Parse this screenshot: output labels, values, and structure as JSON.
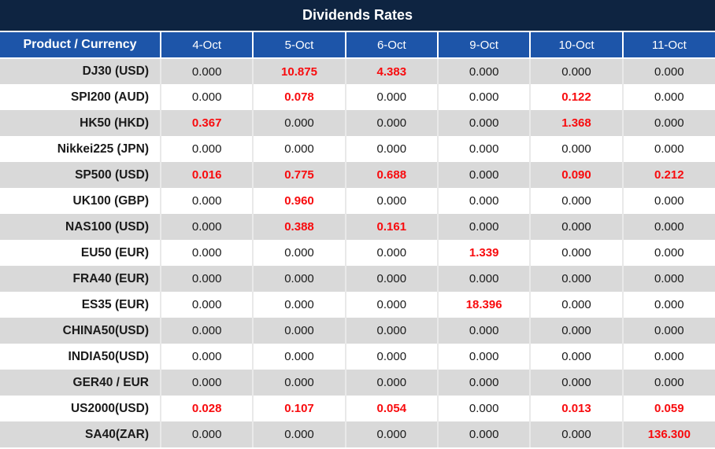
{
  "title": "Dividends Rates",
  "colors": {
    "title_bg": "#0E2441",
    "header_bg": "#1D55A9",
    "row_alt_bg": "#D9D9D9",
    "row_bg": "#FFFFFF",
    "text": "#1A1A1A",
    "header_text": "#FFFFFF",
    "red_value": "#F80B0E"
  },
  "chart_data": {
    "type": "table",
    "title": "Dividends Rates",
    "product_header": "Product / Currency",
    "date_headers": [
      "4-Oct",
      "5-Oct",
      "6-Oct",
      "9-Oct",
      "10-Oct",
      "11-Oct"
    ],
    "rows": [
      {
        "product": "DJ30 (USD)",
        "values": [
          "0.000",
          "10.875",
          "4.383",
          "0.000",
          "0.000",
          "0.000"
        ],
        "red": [
          false,
          true,
          true,
          false,
          false,
          false
        ]
      },
      {
        "product": "SPI200 (AUD)",
        "values": [
          "0.000",
          "0.078",
          "0.000",
          "0.000",
          "0.122",
          "0.000"
        ],
        "red": [
          false,
          true,
          false,
          false,
          true,
          false
        ]
      },
      {
        "product": "HK50 (HKD)",
        "values": [
          "0.367",
          "0.000",
          "0.000",
          "0.000",
          "1.368",
          "0.000"
        ],
        "red": [
          true,
          false,
          false,
          false,
          true,
          false
        ]
      },
      {
        "product": "Nikkei225 (JPN)",
        "values": [
          "0.000",
          "0.000",
          "0.000",
          "0.000",
          "0.000",
          "0.000"
        ],
        "red": [
          false,
          false,
          false,
          false,
          false,
          false
        ]
      },
      {
        "product": "SP500 (USD)",
        "values": [
          "0.016",
          "0.775",
          "0.688",
          "0.000",
          "0.090",
          "0.212"
        ],
        "red": [
          true,
          true,
          true,
          false,
          true,
          true
        ]
      },
      {
        "product": "UK100 (GBP)",
        "values": [
          "0.000",
          "0.960",
          "0.000",
          "0.000",
          "0.000",
          "0.000"
        ],
        "red": [
          false,
          true,
          false,
          false,
          false,
          false
        ]
      },
      {
        "product": "NAS100 (USD)",
        "values": [
          "0.000",
          "0.388",
          "0.161",
          "0.000",
          "0.000",
          "0.000"
        ],
        "red": [
          false,
          true,
          true,
          false,
          false,
          false
        ]
      },
      {
        "product": "EU50 (EUR)",
        "values": [
          "0.000",
          "0.000",
          "0.000",
          "1.339",
          "0.000",
          "0.000"
        ],
        "red": [
          false,
          false,
          false,
          true,
          false,
          false
        ]
      },
      {
        "product": "FRA40 (EUR)",
        "values": [
          "0.000",
          "0.000",
          "0.000",
          "0.000",
          "0.000",
          "0.000"
        ],
        "red": [
          false,
          false,
          false,
          false,
          false,
          false
        ]
      },
      {
        "product": "ES35 (EUR)",
        "values": [
          "0.000",
          "0.000",
          "0.000",
          "18.396",
          "0.000",
          "0.000"
        ],
        "red": [
          false,
          false,
          false,
          true,
          false,
          false
        ]
      },
      {
        "product": "CHINA50(USD)",
        "values": [
          "0.000",
          "0.000",
          "0.000",
          "0.000",
          "0.000",
          "0.000"
        ],
        "red": [
          false,
          false,
          false,
          false,
          false,
          false
        ]
      },
      {
        "product": "INDIA50(USD)",
        "values": [
          "0.000",
          "0.000",
          "0.000",
          "0.000",
          "0.000",
          "0.000"
        ],
        "red": [
          false,
          false,
          false,
          false,
          false,
          false
        ]
      },
      {
        "product": "GER40 / EUR",
        "values": [
          "0.000",
          "0.000",
          "0.000",
          "0.000",
          "0.000",
          "0.000"
        ],
        "red": [
          false,
          false,
          false,
          false,
          false,
          false
        ]
      },
      {
        "product": "US2000(USD)",
        "values": [
          "0.028",
          "0.107",
          "0.054",
          "0.000",
          "0.013",
          "0.059"
        ],
        "red": [
          true,
          true,
          true,
          false,
          true,
          true
        ]
      },
      {
        "product": "SA40(ZAR)",
        "values": [
          "0.000",
          "0.000",
          "0.000",
          "0.000",
          "0.000",
          "136.300"
        ],
        "red": [
          false,
          false,
          false,
          false,
          false,
          true
        ]
      }
    ]
  }
}
